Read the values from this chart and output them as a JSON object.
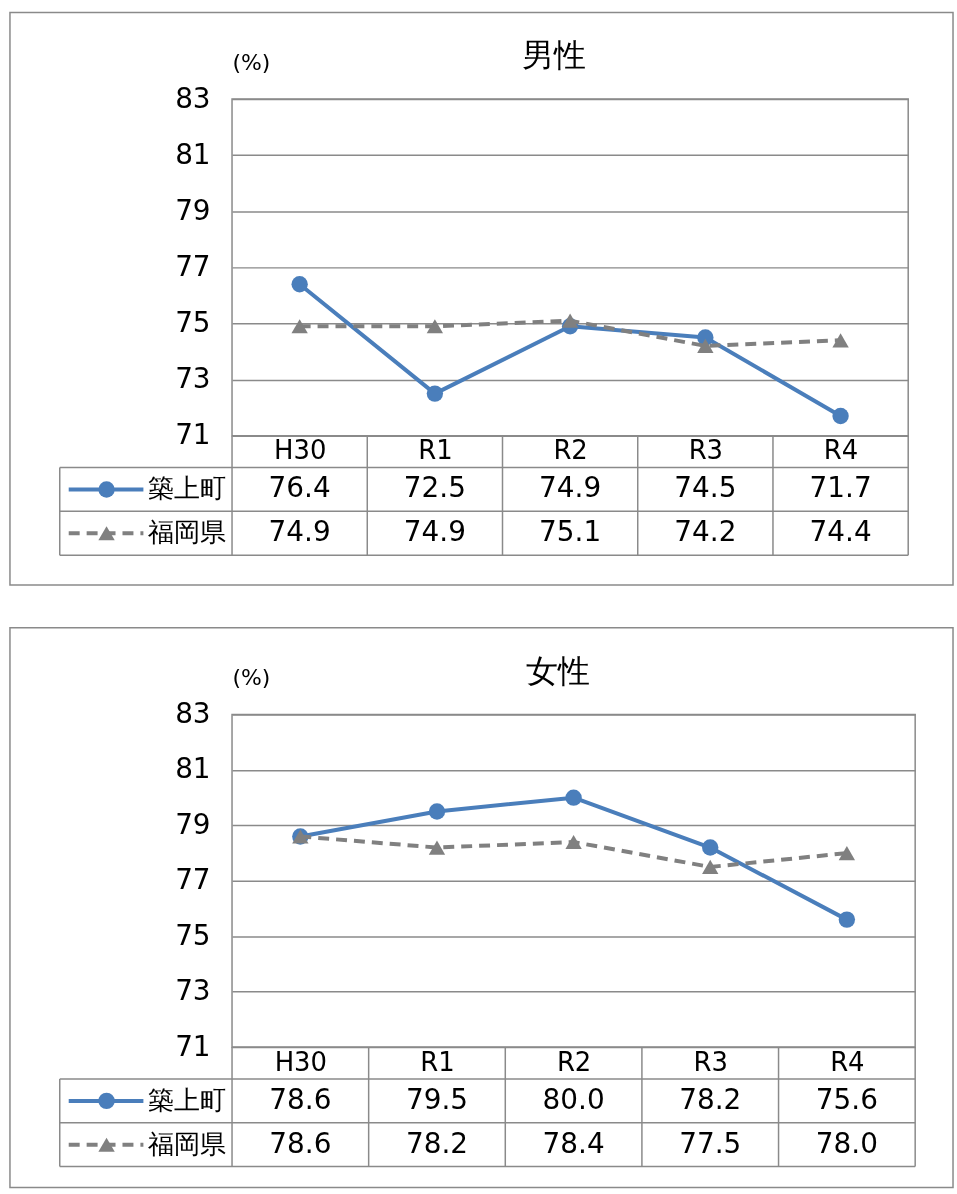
{
  "chart_data": [
    {
      "type": "line",
      "title": "男性",
      "ylabel": "(%)",
      "categories": [
        "H30",
        "R1",
        "R2",
        "R3",
        "R4"
      ],
      "ylim": [
        71,
        83
      ],
      "yticks": [
        71,
        73,
        75,
        77,
        79,
        81,
        83
      ],
      "grid": "y",
      "legend": "bottom left",
      "series": [
        {
          "name": "築上町",
          "color": "#4a7ebb",
          "marker": "circle",
          "line_style": "solid",
          "values": [
            76.4,
            72.5,
            74.9,
            74.5,
            71.7
          ],
          "value_labels": [
            "76.4",
            "72.5",
            "74.9",
            "74.5",
            "71.7"
          ]
        },
        {
          "name": "福岡県",
          "color": "#808080",
          "marker": "triangle",
          "line_style": "dashed",
          "values": [
            74.9,
            74.9,
            75.1,
            74.2,
            74.4
          ],
          "value_labels": [
            "74.9",
            "74.9",
            "75.1",
            "74.2",
            "74.4"
          ]
        }
      ]
    },
    {
      "type": "line",
      "title": "女性",
      "ylabel": "(%)",
      "categories": [
        "H30",
        "R1",
        "R2",
        "R3",
        "R4"
      ],
      "ylim": [
        71,
        83
      ],
      "yticks": [
        71,
        73,
        75,
        77,
        79,
        81,
        83
      ],
      "grid": "y",
      "legend": "bottom left",
      "series": [
        {
          "name": "築上町",
          "color": "#4a7ebb",
          "marker": "circle",
          "line_style": "solid",
          "values": [
            78.6,
            79.5,
            80.0,
            78.2,
            75.6
          ],
          "value_labels": [
            "78.6",
            "79.5",
            "80.0",
            "78.2",
            "75.6"
          ]
        },
        {
          "name": "福岡県",
          "color": "#808080",
          "marker": "triangle",
          "line_style": "dashed",
          "values": [
            78.6,
            78.2,
            78.4,
            77.5,
            78.0
          ],
          "value_labels": [
            "78.6",
            "78.2",
            "78.4",
            "77.5",
            "78.0"
          ]
        }
      ]
    }
  ]
}
